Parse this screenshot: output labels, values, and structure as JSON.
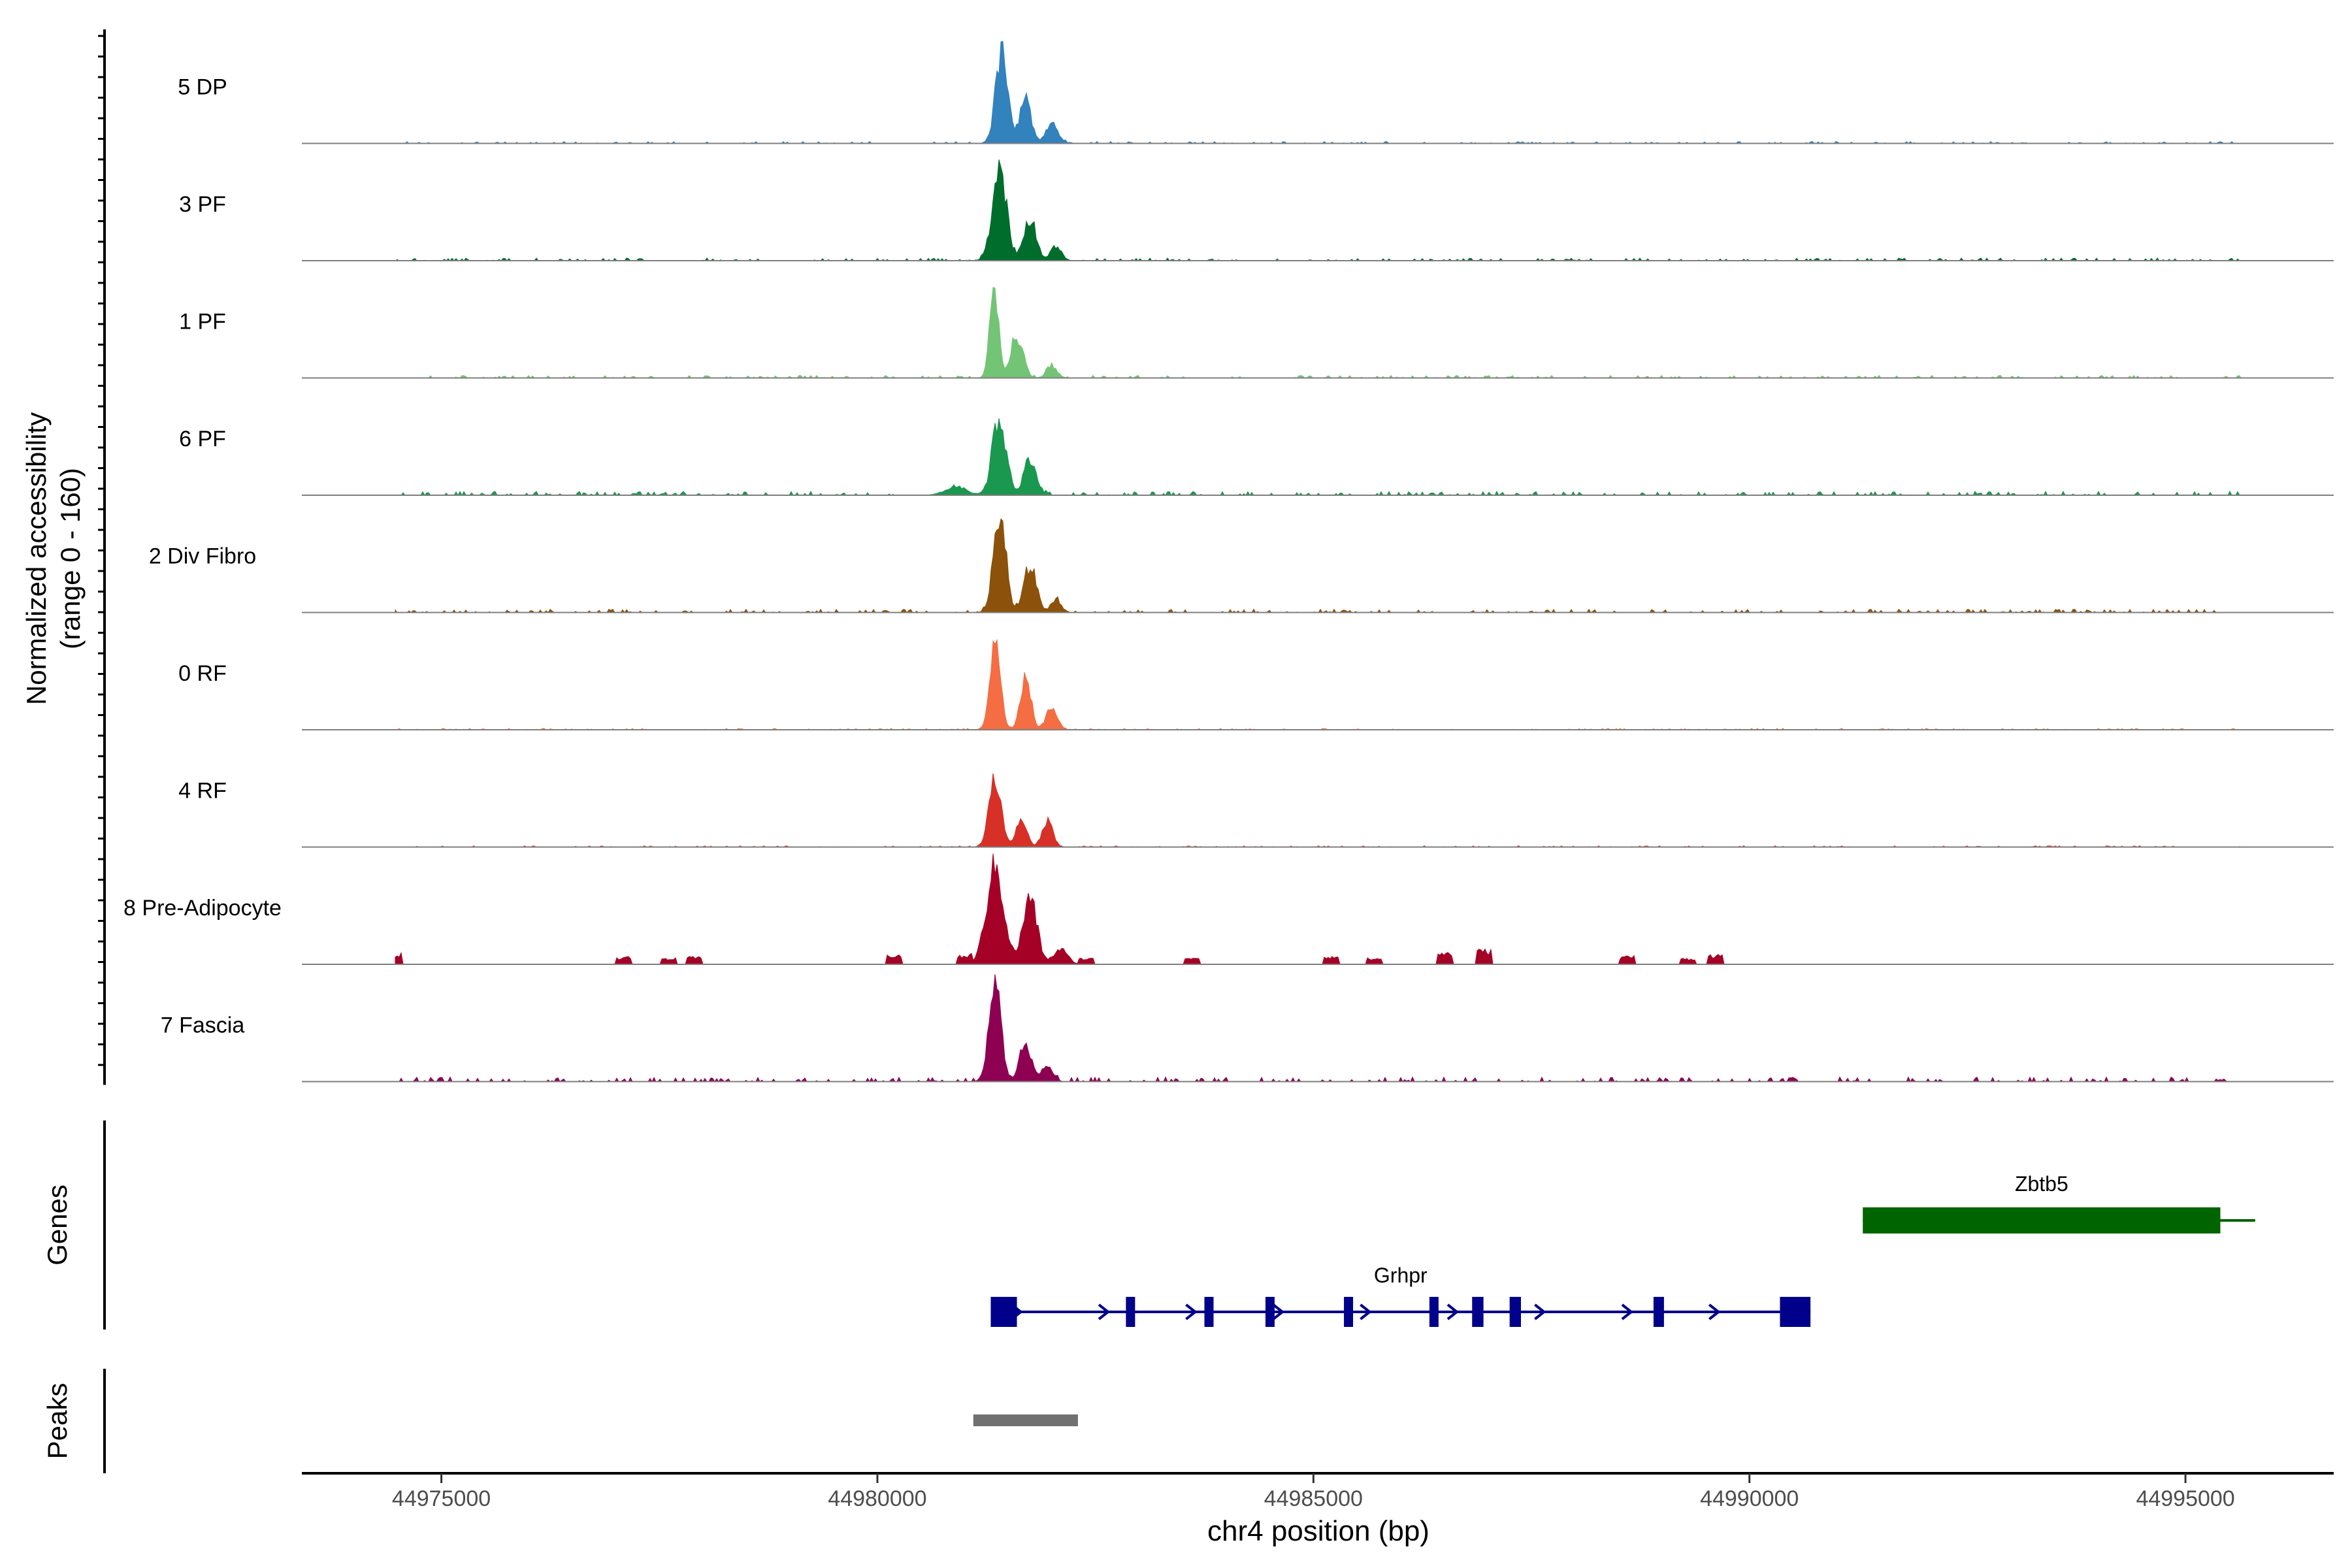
{
  "chart_data": {
    "type": "area",
    "xlabel": "chr4 position (bp)",
    "ylabel": "Normalized accessibility",
    "ylabel_sub": "(range 0 - 160)",
    "ylim": [
      0,
      160
    ],
    "xlim": [
      44973400,
      44996700
    ],
    "xticks": [
      44975000,
      44980000,
      44985000,
      44990000,
      44995000
    ],
    "xtick_labels": [
      "44975000",
      "44980000",
      "44985000",
      "44990000",
      "44995000"
    ],
    "tracks": [
      {
        "name": "5 DP",
        "color": "#3182BD",
        "peaks": [
          [
            44981430,
            160,
            70
          ],
          [
            44981700,
            80,
            60
          ],
          [
            44982000,
            30,
            70
          ]
        ],
        "noise": 3,
        "sparse": false
      },
      {
        "name": "3 PF",
        "color": "#006D2C",
        "peaks": [
          [
            44981400,
            150,
            80
          ],
          [
            44981750,
            70,
            70
          ],
          [
            44982050,
            25,
            60
          ]
        ],
        "noise": 4,
        "sparse": false
      },
      {
        "name": "1 PF",
        "color": "#74C476",
        "peaks": [
          [
            44981340,
            150,
            50
          ],
          [
            44981600,
            70,
            70
          ],
          [
            44982000,
            20,
            60
          ]
        ],
        "noise": 4,
        "sparse": false
      },
      {
        "name": "6 PF",
        "color": "#1A9850",
        "peaks": [
          [
            44981400,
            125,
            80
          ],
          [
            44981750,
            60,
            70
          ],
          [
            44980900,
            15,
            120
          ]
        ],
        "noise": 6,
        "sparse": false
      },
      {
        "name": "2 Div Fibro",
        "color": "#8C510A",
        "peaks": [
          [
            44981400,
            170,
            70
          ],
          [
            44981750,
            80,
            70
          ],
          [
            44982050,
            20,
            60
          ]
        ],
        "noise": 5,
        "sparse": false
      },
      {
        "name": "0 RF",
        "color": "#F46D43",
        "peaks": [
          [
            44981350,
            150,
            60
          ],
          [
            44981700,
            90,
            60
          ],
          [
            44982000,
            40,
            60
          ]
        ],
        "noise": 2,
        "sparse": false
      },
      {
        "name": "4 RF",
        "color": "#D73027",
        "peaks": [
          [
            44981350,
            110,
            70
          ],
          [
            44981650,
            45,
            60
          ],
          [
            44981950,
            45,
            60
          ]
        ],
        "noise": 2,
        "sparse": false
      },
      {
        "name": "8 Pre-Adipocyte",
        "color": "#A50026",
        "peaks": [
          [
            44981350,
            160,
            100
          ],
          [
            44981750,
            110,
            80
          ],
          [
            44982100,
            25,
            80
          ]
        ],
        "noise": 0,
        "sparse": true,
        "blips": [
          [
            44974450,
            18
          ],
          [
            44977100,
            12
          ],
          [
            44977600,
            10
          ],
          [
            44977900,
            12
          ],
          [
            44980200,
            16
          ],
          [
            44981000,
            14
          ],
          [
            44982400,
            10
          ],
          [
            44983600,
            12
          ],
          [
            44985200,
            14
          ],
          [
            44985700,
            10
          ],
          [
            44986500,
            20
          ],
          [
            44986950,
            24
          ],
          [
            44988600,
            14
          ],
          [
            44989300,
            10
          ],
          [
            44989600,
            16
          ]
        ]
      },
      {
        "name": "7 Fascia",
        "color": "#8E0152",
        "peaks": [
          [
            44981350,
            150,
            70
          ],
          [
            44981700,
            60,
            70
          ],
          [
            44981950,
            30,
            60
          ]
        ],
        "noise": 7,
        "sparse": false
      }
    ],
    "genes_label": "Genes",
    "genes": [
      {
        "name": "Zbtb5",
        "color": "#006400",
        "start": 44991300,
        "end": 44995800,
        "thick_end": 44995400,
        "exons": [
          [
            44991300,
            44995400
          ]
        ],
        "strand": "-"
      },
      {
        "name": "Grhpr",
        "color": "#00008B",
        "start": 44981300,
        "end": 44990700,
        "exons": [
          [
            44981300,
            44981600
          ],
          [
            44982850,
            44982950
          ],
          [
            44983750,
            44983800
          ],
          [
            44984450,
            44984550
          ],
          [
            44985350,
            44985420
          ],
          [
            44986330,
            44986430
          ],
          [
            44986820,
            44986950
          ],
          [
            44987250,
            44987380
          ],
          [
            44988900,
            44989020
          ],
          [
            44990350,
            44990700
          ]
        ],
        "strand": "+"
      }
    ],
    "peaks_label": "Peaks",
    "peak_regions": [
      [
        44981100,
        44982300
      ]
    ],
    "peak_color": "#707070"
  }
}
